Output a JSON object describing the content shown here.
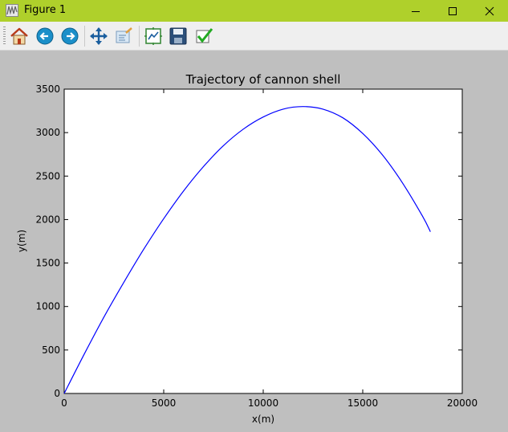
{
  "window": {
    "title": "Figure 1",
    "icons": [
      "figure-app-icon",
      "minimize-icon",
      "maximize-icon",
      "close-icon"
    ]
  },
  "toolbar": {
    "buttons": [
      {
        "name": "home-button",
        "icon": "home-icon"
      },
      {
        "name": "back-button",
        "icon": "back-arrow-icon"
      },
      {
        "name": "forward-button",
        "icon": "forward-arrow-icon"
      },
      {
        "name": "pan-button",
        "icon": "move-arrows-icon"
      },
      {
        "name": "zoom-button",
        "icon": "zoom-rect-icon"
      },
      {
        "name": "subplots-button",
        "icon": "subplots-icon"
      },
      {
        "name": "save-button",
        "icon": "floppy-disk-icon"
      },
      {
        "name": "edit-button",
        "icon": "checkmark-icon"
      }
    ]
  },
  "chart_data": {
    "type": "line",
    "title": "Trajectory of cannon shell",
    "xlabel": "x(m)",
    "ylabel": "y(m)",
    "xlim": [
      0,
      20000
    ],
    "ylim": [
      0,
      3500
    ],
    "xticks": [
      "0",
      "5000",
      "10000",
      "15000",
      "20000"
    ],
    "yticks": [
      "0",
      "500",
      "1000",
      "1500",
      "2000",
      "2500",
      "3000",
      "3500"
    ],
    "grid": false,
    "line_color": "#0000ff",
    "series": [
      {
        "x": [
          0,
          1000,
          2000,
          3000,
          4000,
          5000,
          6000,
          7000,
          8000,
          9000,
          10000,
          11000,
          12000,
          13000,
          14000,
          15000,
          16000,
          17000,
          18000,
          18400
        ],
        "y": [
          0,
          450,
          880,
          1280,
          1660,
          2010,
          2330,
          2610,
          2850,
          3040,
          3180,
          3270,
          3300,
          3270,
          3170,
          2990,
          2740,
          2420,
          2040,
          1860
        ]
      }
    ]
  }
}
